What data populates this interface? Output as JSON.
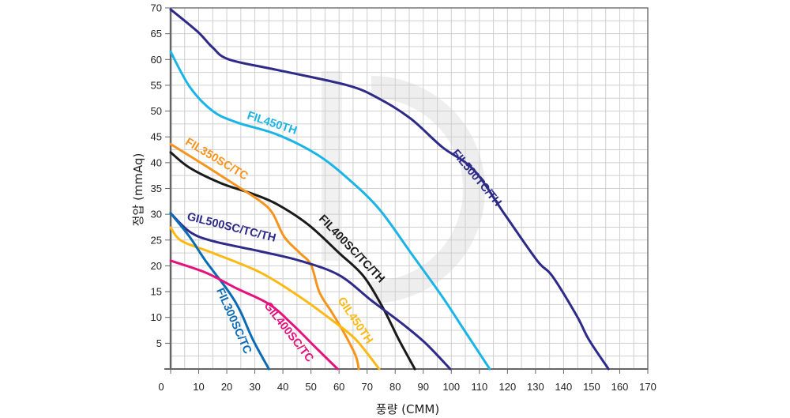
{
  "chart_data": {
    "type": "line",
    "title": "",
    "xlabel": "풍량 (CMM)",
    "ylabel": "정압 (mmAq)",
    "xlim": [
      0,
      170
    ],
    "ylim": [
      0,
      70
    ],
    "xticks": [
      0,
      10,
      20,
      30,
      40,
      50,
      60,
      70,
      80,
      90,
      100,
      110,
      120,
      130,
      140,
      150,
      160,
      170
    ],
    "yticks": [
      5,
      10,
      15,
      20,
      25,
      30,
      35,
      40,
      45,
      50,
      55,
      60,
      65,
      70
    ],
    "x_origin_label": "0",
    "grid": true,
    "legend": "inline labels on curves",
    "series": [
      {
        "name": "FIL500TC/TH",
        "color": "#2e2a88",
        "points": [
          [
            0,
            69.7
          ],
          [
            9.6,
            65.4
          ],
          [
            15,
            62.3
          ],
          [
            20.8,
            60
          ],
          [
            37.7,
            58
          ],
          [
            63,
            55
          ],
          [
            74.3,
            52.4
          ],
          [
            85.6,
            48.5
          ],
          [
            96.8,
            43
          ],
          [
            108,
            38.6
          ],
          [
            119,
            30
          ],
          [
            130.6,
            21
          ],
          [
            136,
            18
          ],
          [
            144.7,
            10.3
          ],
          [
            149,
            5.7
          ],
          [
            156,
            0
          ]
        ]
      },
      {
        "name": "FIL450TH",
        "color": "#1ab4e6",
        "points": [
          [
            0,
            61.5
          ],
          [
            6.8,
            54.7
          ],
          [
            15,
            50
          ],
          [
            23.6,
            47.8
          ],
          [
            37.7,
            45.5
          ],
          [
            51.8,
            41.7
          ],
          [
            63,
            37
          ],
          [
            74.3,
            31
          ],
          [
            85.6,
            22.5
          ],
          [
            96.8,
            14
          ],
          [
            105,
            7.2
          ],
          [
            113.7,
            0
          ]
        ]
      },
      {
        "name": "FIL400SC/TC/TH",
        "color": "#1a1a1a",
        "points": [
          [
            0,
            42
          ],
          [
            6.8,
            39
          ],
          [
            18,
            36
          ],
          [
            29,
            34
          ],
          [
            37.7,
            32
          ],
          [
            49,
            28
          ],
          [
            60,
            22.5
          ],
          [
            68.7,
            18
          ],
          [
            75.7,
            11.8
          ],
          [
            81.3,
            5.7
          ],
          [
            87,
            0
          ]
        ]
      },
      {
        "name": "FIL350SC/TC",
        "color": "#f7941d",
        "points": [
          [
            0,
            43.6
          ],
          [
            12.4,
            39.4
          ],
          [
            23.6,
            35.5
          ],
          [
            32,
            32.5
          ],
          [
            36.3,
            30.2
          ],
          [
            40.5,
            25.6
          ],
          [
            46,
            22.5
          ],
          [
            50,
            20.2
          ],
          [
            53,
            14.9
          ],
          [
            57.4,
            11
          ],
          [
            61.6,
            7.2
          ],
          [
            65.9,
            2.6
          ],
          [
            67,
            0
          ]
        ]
      },
      {
        "name": "GIL500SC/TC/TH",
        "color": "#2e2a88",
        "points": [
          [
            0,
            30.2
          ],
          [
            6.8,
            26.6
          ],
          [
            15,
            24.8
          ],
          [
            32,
            22.8
          ],
          [
            46,
            21
          ],
          [
            60,
            18.2
          ],
          [
            71.5,
            13.3
          ],
          [
            82.7,
            8.7
          ],
          [
            91,
            4.9
          ],
          [
            99.6,
            0
          ]
        ]
      },
      {
        "name": "GIL450TH",
        "color": "#fdb913",
        "points": [
          [
            0,
            27.4
          ],
          [
            4,
            24.8
          ],
          [
            15,
            22.5
          ],
          [
            32,
            18.7
          ],
          [
            46,
            14
          ],
          [
            57.4,
            9.5
          ],
          [
            66,
            5.7
          ],
          [
            74.3,
            0
          ]
        ]
      },
      {
        "name": "FIL300SC/TC",
        "color": "#0b6cb5",
        "points": [
          [
            0,
            30.2
          ],
          [
            6.8,
            25.6
          ],
          [
            12.4,
            21
          ],
          [
            20.8,
            14.9
          ],
          [
            25,
            11
          ],
          [
            29.3,
            5.7
          ],
          [
            35,
            0
          ]
        ]
      },
      {
        "name": "GIL400SC/TC",
        "color": "#e5127d",
        "points": [
          [
            0,
            21
          ],
          [
            12.4,
            18.7
          ],
          [
            23.6,
            15.6
          ],
          [
            35,
            12.6
          ],
          [
            43.3,
            8.7
          ],
          [
            51.8,
            4.1
          ],
          [
            59.5,
            0
          ]
        ]
      }
    ]
  }
}
